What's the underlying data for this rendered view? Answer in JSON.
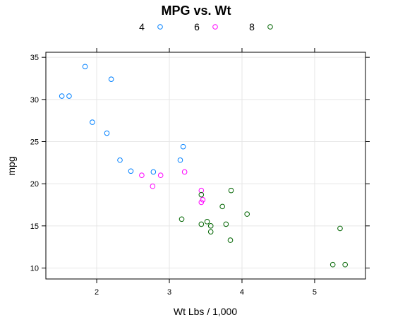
{
  "chart_data": {
    "type": "scatter",
    "title": "MPG vs. Wt",
    "xlabel": "Wt Lbs / 1,000",
    "ylabel": "mpg",
    "xlim": [
      1.3,
      5.7
    ],
    "ylim": [
      8.7,
      35.6
    ],
    "xticks": [
      "2",
      "3",
      "4",
      "5"
    ],
    "yticks": [
      "10",
      "15",
      "20",
      "25",
      "30",
      "35"
    ],
    "grid": true,
    "legend_position": "top",
    "series": [
      {
        "name": "4",
        "color": "#0080ff",
        "points": [
          [
            1.84,
            33.9
          ],
          [
            2.2,
            32.4
          ],
          [
            1.52,
            30.4
          ],
          [
            1.62,
            30.4
          ],
          [
            1.94,
            27.3
          ],
          [
            2.14,
            26.0
          ],
          [
            2.32,
            22.8
          ],
          [
            2.47,
            21.5
          ],
          [
            2.78,
            21.4
          ],
          [
            3.15,
            22.8
          ],
          [
            3.19,
            24.4
          ]
        ]
      },
      {
        "name": "6",
        "color": "#ff00ff",
        "points": [
          [
            2.62,
            21.0
          ],
          [
            2.88,
            21.0
          ],
          [
            3.21,
            21.4
          ],
          [
            2.77,
            19.7
          ],
          [
            3.44,
            19.2
          ],
          [
            3.44,
            17.8
          ],
          [
            3.46,
            18.1
          ]
        ]
      },
      {
        "name": "8",
        "color": "#006400",
        "points": [
          [
            3.44,
            18.7
          ],
          [
            3.57,
            14.3
          ],
          [
            4.07,
            16.4
          ],
          [
            3.73,
            17.3
          ],
          [
            3.78,
            15.2
          ],
          [
            5.25,
            10.4
          ],
          [
            5.42,
            10.4
          ],
          [
            5.35,
            14.7
          ],
          [
            3.52,
            15.5
          ],
          [
            3.44,
            15.2
          ],
          [
            3.84,
            13.3
          ],
          [
            3.85,
            19.2
          ],
          [
            3.17,
            15.8
          ],
          [
            3.57,
            15.0
          ]
        ]
      }
    ]
  }
}
